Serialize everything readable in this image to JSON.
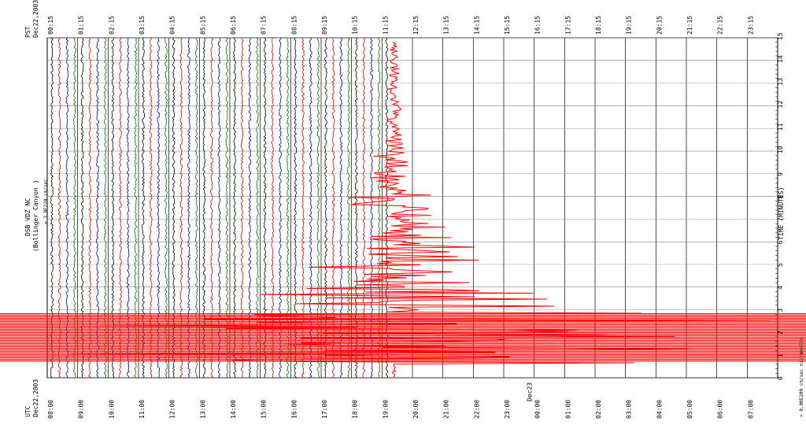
{
  "header": {
    "pst": "PST",
    "pst_date": "Dec22,2003",
    "utc": "UTC",
    "utc_date": "Dec22,2003"
  },
  "station": {
    "name": "DSB VDZ NC",
    "site": "(Bollinger Canyon )",
    "scale": "= 3.0E220 cm/sec"
  },
  "top_labels": [
    "00:15",
    "01:15",
    "02:15",
    "03:15",
    "04:15",
    "05:15",
    "06:15",
    "07:15",
    "08:15",
    "09:15",
    "10:15",
    "11:15",
    "12:15",
    "13:15",
    "14:15",
    "15:15",
    "16:15",
    "17:15",
    "18:15",
    "19:15",
    "20:15",
    "21:15",
    "22:15",
    "23:15"
  ],
  "bottom_labels": [
    "08:00",
    "09:00",
    "10:00",
    "11:00",
    "12:00",
    "13:00",
    "14:00",
    "15:00",
    "16:00",
    "17:00",
    "18:00",
    "19:00",
    "20:00",
    "21:00",
    "22:00",
    "23:00",
    "00:00",
    "01:00",
    "02:00",
    "03:00",
    "04:00",
    "05:00",
    "06:00",
    "07:00"
  ],
  "bottom_day": "Dec23",
  "minute_labels": [
    "0",
    "1",
    "2",
    "3",
    "4",
    "5",
    "6",
    "7",
    "8",
    "9",
    "10",
    "11",
    "12",
    "13",
    "14",
    "15"
  ],
  "minute_axis_title": "TIME (MINUTES)",
  "footnote": "= 0.00E200 cm/sec microvolts"
}
